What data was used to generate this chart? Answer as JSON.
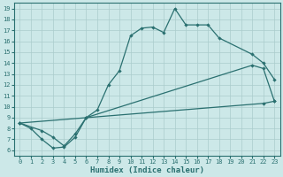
{
  "xlabel": "Humidex (Indice chaleur)",
  "ylabel": "",
  "xlim": [
    -0.5,
    23.5
  ],
  "ylim": [
    5.5,
    19.5
  ],
  "xticks": [
    0,
    1,
    2,
    3,
    4,
    5,
    6,
    7,
    8,
    9,
    10,
    11,
    12,
    13,
    14,
    15,
    16,
    17,
    18,
    19,
    20,
    21,
    22,
    23
  ],
  "yticks": [
    6,
    7,
    8,
    9,
    10,
    11,
    12,
    13,
    14,
    15,
    16,
    17,
    18,
    19
  ],
  "bg_color": "#cce8e8",
  "grid_color": "#aacccc",
  "line_color": "#2a7070",
  "line1_x": [
    0,
    1,
    2,
    3,
    4,
    5,
    6,
    7,
    8,
    9,
    10,
    11,
    12,
    13,
    14,
    15,
    16,
    17,
    18,
    21,
    22,
    23
  ],
  "line1_y": [
    8.5,
    8.0,
    7.0,
    6.2,
    6.3,
    7.2,
    9.0,
    9.7,
    12.0,
    13.3,
    16.5,
    17.2,
    17.3,
    16.8,
    19.0,
    17.5,
    17.5,
    17.5,
    16.3,
    14.8,
    14.0,
    12.5
  ],
  "line2_x": [
    0,
    2,
    3,
    4,
    5,
    6,
    21,
    22,
    23
  ],
  "line2_y": [
    8.5,
    7.8,
    7.2,
    6.4,
    7.5,
    9.0,
    13.8,
    13.5,
    10.5
  ],
  "line3_x": [
    0,
    22,
    23
  ],
  "line3_y": [
    8.5,
    10.3,
    10.5
  ],
  "font_family": "monospace",
  "title_fontsize": 7,
  "xlabel_fontsize": 6.5,
  "tick_fontsize": 5
}
